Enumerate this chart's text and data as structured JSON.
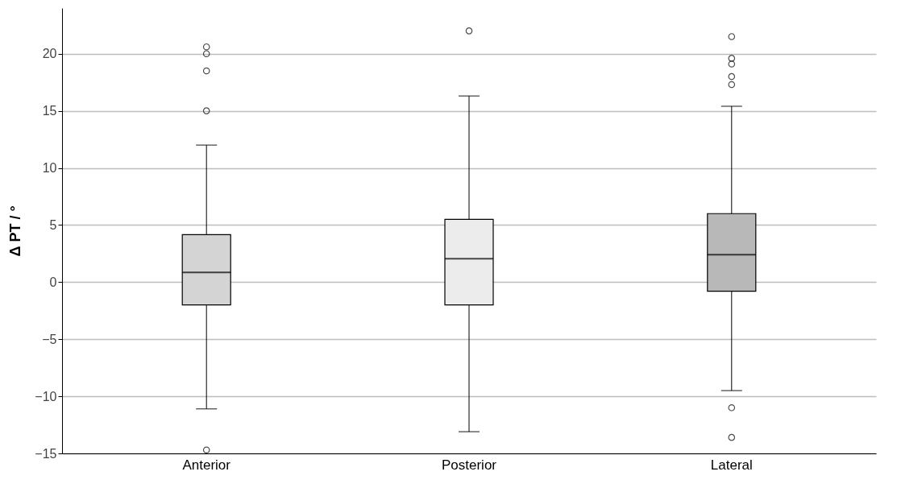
{
  "chart_data": {
    "type": "box",
    "ylabel": "Δ PT / °",
    "categories": [
      "Anterior",
      "Posterior",
      "Lateral"
    ],
    "colors": [
      "#d4d4d4",
      "#ececec",
      "#b8b8b8"
    ],
    "boxes": [
      {
        "low": -11.1,
        "q1": -2,
        "median": 0.85,
        "q3": 4.15,
        "high": 12,
        "outliers": [
          20.6,
          20,
          18.5,
          15,
          -14.7
        ]
      },
      {
        "low": -13.1,
        "q1": -2,
        "median": 2.05,
        "q3": 5.5,
        "high": 16.3,
        "outliers": [
          22
        ]
      },
      {
        "low": -9.5,
        "q1": -0.8,
        "median": 2.4,
        "q3": 6,
        "high": 15.4,
        "outliers": [
          21.5,
          19.6,
          19.1,
          18,
          17.3,
          -11,
          -13.6
        ]
      }
    ],
    "ylim": [
      -15,
      24
    ],
    "yticks": [
      -15,
      -10,
      -5,
      0,
      5,
      10,
      15,
      20
    ],
    "grid": "y",
    "marker": "circle"
  }
}
